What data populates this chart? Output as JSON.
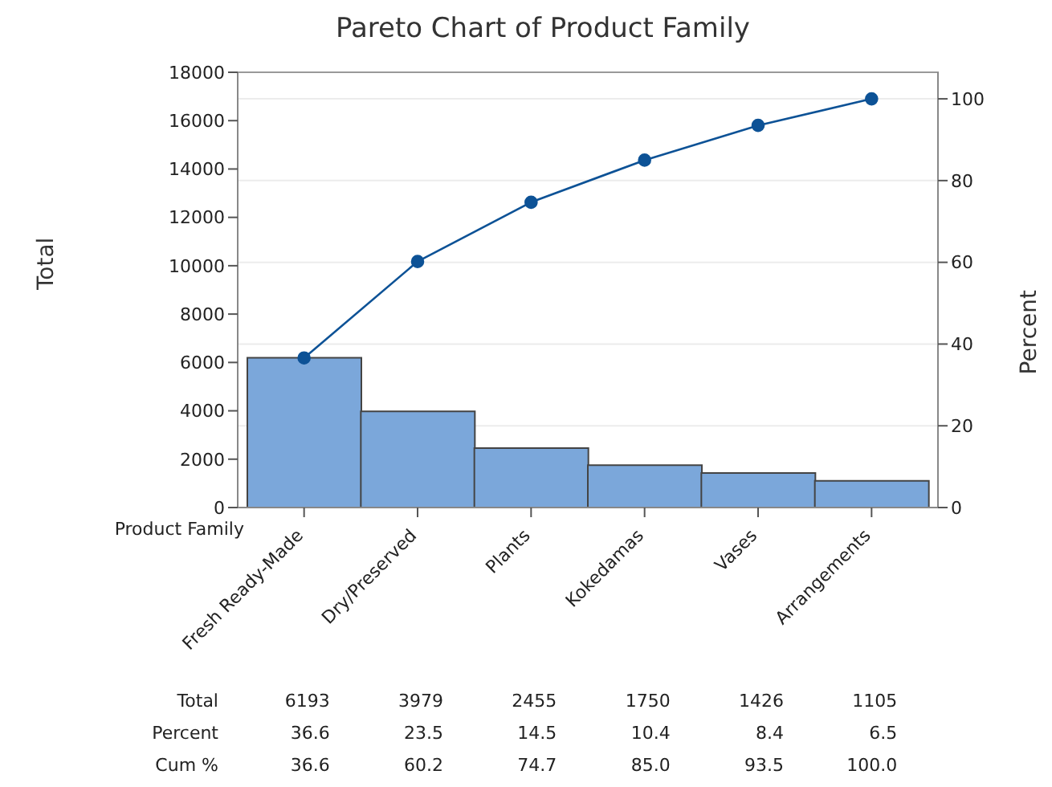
{
  "chart_data": {
    "type": "bar",
    "title": "Pareto Chart of Product Family",
    "xlabel": "Product Family",
    "ylabel": "Total",
    "y2label": "Percent",
    "categories": [
      "Fresh Ready-Made",
      "Dry/Preserved",
      "Plants",
      "Kokedamas",
      "Vases",
      "Arrangements"
    ],
    "series": [
      {
        "color": "#7ba7da",
        "values": [
          6193,
          3979,
          2455,
          1750,
          1426,
          1105
        ],
        "value_labels": [
          "6193",
          "3979",
          "2455",
          "1750",
          "1426",
          "1105"
        ]
      },
      {
        "type": "line",
        "axis": "y2",
        "color": "#0d5296",
        "values": [
          36.6,
          60.2,
          74.7,
          85.0,
          93.5,
          100.0
        ],
        "value_labels": [
          "36.6",
          "60.2",
          "74.7",
          "85.0",
          "93.5",
          "100.0"
        ]
      }
    ],
    "annotations": [
      "Total",
      "Percent",
      "36.6",
      "23.5",
      "14.5",
      "10.4",
      "8.4",
      "6.5",
      "Cum %"
    ],
    "ylim": [
      0,
      18000
    ],
    "yticks": [
      0,
      2000,
      4000,
      6000,
      8000,
      10000,
      12000,
      14000,
      16000,
      18000
    ],
    "y2lim": [
      0,
      106.5
    ],
    "y2ticks": [
      0,
      20,
      40,
      60,
      80,
      100
    ],
    "grid": "y",
    "legend": false,
    "marker": "circle"
  }
}
